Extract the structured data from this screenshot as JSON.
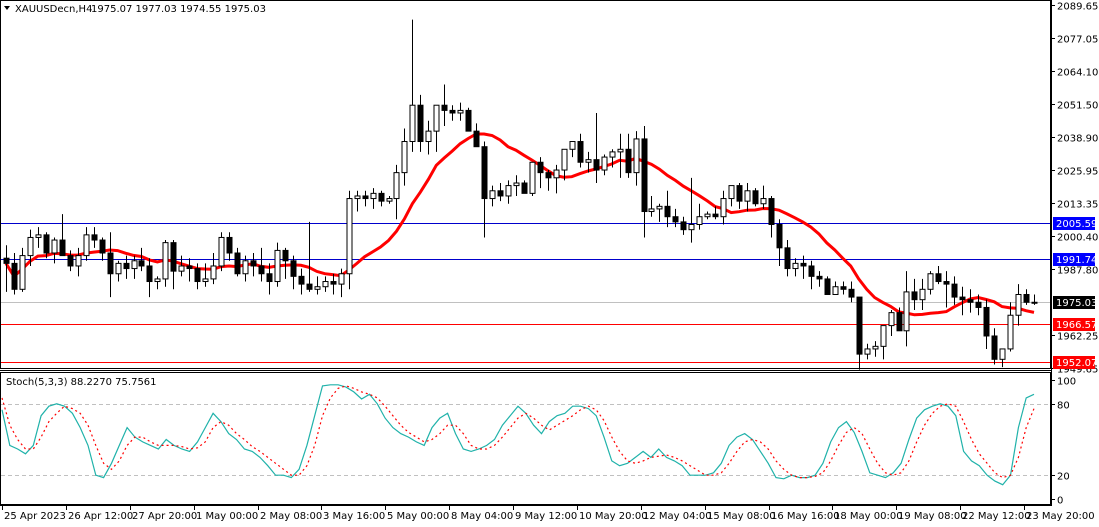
{
  "header": {
    "symbol_label": "XAUUSDecn,H4",
    "ohlc_label": "1975.07 1977.03 1974.55 1975.03"
  },
  "indicator": {
    "label": "Stoch(5,3,3) 88.2270 75.7561",
    "main_value": 88.227,
    "signal_value": 75.7561,
    "main_color": "#20b2aa",
    "signal_color": "#ff0000",
    "levels": [
      80,
      20
    ],
    "axis_ticks": [
      "100",
      "80",
      "20",
      "0"
    ]
  },
  "price_axis": {
    "ticks": [
      "2089.65",
      "2077.05",
      "2064.10",
      "2051.50",
      "2038.90",
      "2025.95",
      "2013.35",
      "2000.40",
      "1987.80",
      "1962.25",
      "1949.65"
    ],
    "tick_values": [
      2089.65,
      2077.05,
      2064.1,
      2051.5,
      2038.9,
      2025.95,
      2013.35,
      2000.4,
      1987.8,
      1962.25,
      1949.65
    ]
  },
  "price_tags": [
    {
      "label": "2005.59",
      "value": 2005.59,
      "bg": "#0000ff",
      "line": "#0000cc"
    },
    {
      "label": "1991.74",
      "value": 1991.74,
      "bg": "#0000ff",
      "line": "#0000cc"
    },
    {
      "label": "1975.03",
      "value": 1975.03,
      "bg": "#000000",
      "line": "#c0c0c0"
    },
    {
      "label": "1966.57",
      "value": 1966.57,
      "bg": "#ff0000",
      "line": "#ff0000"
    },
    {
      "label": "1952.07",
      "value": 1952.07,
      "bg": "#ff0000",
      "line": "#ff0000"
    }
  ],
  "time_axis": {
    "labels": [
      "25 Apr 2023",
      "26 Apr 12:00",
      "27 Apr 20:00",
      "1 May 00:00",
      "2 May 08:00",
      "3 May 16:00",
      "5 May 00:00",
      "8 May 04:00",
      "9 May 12:00",
      "10 May 20:00",
      "12 May 04:00",
      "15 May 08:00",
      "16 May 16:00",
      "18 May 00:00",
      "19 May 08:00",
      "22 May 12:00",
      "23 May 20:00"
    ]
  },
  "colors": {
    "ma_line": "#ff0000",
    "bull_body": "#ffffff",
    "bear_body": "#000000",
    "grid_level": "#c0c0c0"
  },
  "chart_data": [
    {
      "type": "candlestick",
      "title": "XAUUSDecn,H4",
      "ylim": [
        1949.65,
        2089.65
      ],
      "x_labels": [
        "25 Apr 2023",
        "26 Apr 12:00",
        "27 Apr 20:00",
        "1 May 00:00",
        "2 May 08:00",
        "3 May 16:00",
        "5 May 00:00",
        "8 May 04:00",
        "9 May 12:00",
        "10 May 20:00",
        "12 May 04:00",
        "15 May 08:00",
        "16 May 16:00",
        "18 May 00:00",
        "19 May 08:00",
        "22 May 12:00",
        "23 May 20:00"
      ],
      "ohlc": [
        [
          1992,
          1997,
          1979,
          1990
        ],
        [
          1990,
          1994,
          1978,
          1980
        ],
        [
          1980,
          1996,
          1979,
          1993
        ],
        [
          1993,
          2003,
          1989,
          2000
        ],
        [
          2000,
          2004,
          1996,
          2001
        ],
        [
          2001,
          2002,
          1992,
          1994
        ],
        [
          1994,
          2000,
          1990,
          1999
        ],
        [
          1999,
          2009,
          1993,
          1993
        ],
        [
          1993,
          1995,
          1987,
          1989
        ],
        [
          1989,
          1996,
          1985,
          1993
        ],
        [
          1993,
          2004,
          1991,
          2001
        ],
        [
          2001,
          2004,
          1996,
          1999
        ],
        [
          1999,
          2000,
          1991,
          1994
        ],
        [
          1994,
          2002,
          1977,
          1986
        ],
        [
          1986,
          1991,
          1983,
          1990
        ],
        [
          1990,
          1993,
          1984,
          1988
        ],
        [
          1988,
          1993,
          1984,
          1991
        ],
        [
          1991,
          1996,
          1987,
          1989
        ],
        [
          1989,
          1992,
          1977,
          1983
        ],
        [
          1983,
          1985,
          1980,
          1984
        ],
        [
          1984,
          1999,
          1981,
          1998
        ],
        [
          1998,
          1999,
          1980,
          1987
        ],
        [
          1987,
          1993,
          1985,
          1989
        ],
        [
          1989,
          1992,
          1983,
          1988
        ],
        [
          1988,
          1990,
          1980,
          1983
        ],
        [
          1983,
          1990,
          1981,
          1984
        ],
        [
          1984,
          1994,
          1982,
          1989
        ],
        [
          1989,
          2002,
          1987,
          2000
        ],
        [
          2000,
          2002,
          1991,
          1994
        ],
        [
          1994,
          1996,
          1985,
          1986
        ],
        [
          1986,
          1993,
          1983,
          1991
        ],
        [
          1991,
          1994,
          1985,
          1989
        ],
        [
          1989,
          1996,
          1983,
          1986
        ],
        [
          1986,
          1990,
          1978,
          1983
        ],
        [
          1983,
          1998,
          1981,
          1995
        ],
        [
          1995,
          1996,
          1984,
          1991
        ],
        [
          1991,
          1993,
          1980,
          1985
        ],
        [
          1985,
          1988,
          1978,
          1982
        ],
        [
          1982,
          2006,
          1979,
          1980
        ],
        [
          1980,
          1985,
          1978,
          1981
        ],
        [
          1981,
          1985,
          1979,
          1983
        ],
        [
          1983,
          1986,
          1978,
          1982
        ],
        [
          1982,
          1988,
          1977,
          1986
        ],
        [
          1986,
          2018,
          1980,
          2015
        ],
        [
          2015,
          2018,
          2010,
          2016
        ],
        [
          2016,
          2018,
          2012,
          2015
        ],
        [
          2015,
          2019,
          2011,
          2017
        ],
        [
          2017,
          2018,
          2012,
          2014
        ],
        [
          2014,
          2016,
          2013,
          2015
        ],
        [
          2015,
          2028,
          2007,
          2025
        ],
        [
          2025,
          2042,
          2020,
          2037
        ],
        [
          2037,
          2084,
          2033,
          2051
        ],
        [
          2051,
          2055,
          2033,
          2037
        ],
        [
          2037,
          2045,
          2032,
          2041
        ],
        [
          2041,
          2048,
          2033,
          2051
        ],
        [
          2051,
          2059,
          2043,
          2049
        ],
        [
          2049,
          2051,
          2045,
          2048
        ],
        [
          2048,
          2052,
          2045,
          2049
        ],
        [
          2049,
          2050,
          2042,
          2041
        ],
        [
          2041,
          2044,
          2037,
          2035
        ],
        [
          2035,
          2037,
          2000,
          2015
        ],
        [
          2015,
          2020,
          2012,
          2018
        ],
        [
          2018,
          2021,
          2014,
          2016
        ],
        [
          2016,
          2022,
          2013,
          2020
        ],
        [
          2020,
          2024,
          2016,
          2021
        ],
        [
          2021,
          2022,
          2018,
          2017
        ],
        [
          2017,
          2028,
          2016,
          2029
        ],
        [
          2029,
          2031,
          2019,
          2025
        ],
        [
          2025,
          2026,
          2018,
          2023
        ],
        [
          2023,
          2028,
          2017,
          2026
        ],
        [
          2026,
          2033,
          2022,
          2034
        ],
        [
          2034,
          2036,
          2031,
          2037
        ],
        [
          2037,
          2040,
          2027,
          2029
        ],
        [
          2029,
          2033,
          2025,
          2030
        ],
        [
          2030,
          2048,
          2021,
          2026
        ],
        [
          2026,
          2032,
          2024,
          2031
        ],
        [
          2031,
          2034,
          2027,
          2033
        ],
        [
          2033,
          2040,
          2023,
          2034
        ],
        [
          2034,
          2040,
          2023,
          2025
        ],
        [
          2025,
          2041,
          2020,
          2038
        ],
        [
          2038,
          2043,
          2000,
          2010
        ],
        [
          2010,
          2016,
          2008,
          2011
        ],
        [
          2011,
          2013,
          2006,
          2012
        ],
        [
          2012,
          2018,
          2004,
          2008
        ],
        [
          2008,
          2011,
          2004,
          2006
        ],
        [
          2006,
          2008,
          2001,
          2003
        ],
        [
          2003,
          2023,
          1998,
          2005
        ],
        [
          2005,
          2013,
          2003,
          2008
        ],
        [
          2008,
          2010,
          2007,
          2009
        ],
        [
          2009,
          2012,
          2007,
          2008
        ],
        [
          2008,
          2018,
          2005,
          2015
        ],
        [
          2015,
          2020,
          2012,
          2020
        ],
        [
          2020,
          2021,
          2011,
          2014
        ],
        [
          2014,
          2021,
          2010,
          2018
        ],
        [
          2018,
          2019,
          2012,
          2013
        ],
        [
          2013,
          2020,
          2011,
          2015
        ],
        [
          2015,
          2016,
          2000,
          2005
        ],
        [
          2005,
          2007,
          1989,
          1996
        ],
        [
          1996,
          1999,
          1985,
          1988
        ],
        [
          1988,
          1992,
          1985,
          1990
        ],
        [
          1990,
          1993,
          1984,
          1989
        ],
        [
          1989,
          1991,
          1980,
          1985
        ],
        [
          1985,
          1987,
          1981,
          1984
        ],
        [
          1984,
          1985,
          1978,
          1978
        ],
        [
          1978,
          1983,
          1978,
          1981
        ],
        [
          1981,
          1983,
          1978,
          1980
        ],
        [
          1980,
          1983,
          1975,
          1977
        ],
        [
          1977,
          1977,
          1949,
          1955
        ],
        [
          1955,
          1959,
          1953,
          1957
        ],
        [
          1957,
          1960,
          1954,
          1958
        ],
        [
          1958,
          1966,
          1953,
          1966
        ],
        [
          1966,
          1972,
          1962,
          1971
        ],
        [
          1971,
          1973,
          1964,
          1964
        ],
        [
          1964,
          1987,
          1958,
          1979
        ],
        [
          1979,
          1984,
          1972,
          1976
        ],
        [
          1976,
          1984,
          1972,
          1980
        ],
        [
          1980,
          1987,
          1978,
          1986
        ],
        [
          1986,
          1989,
          1982,
          1983
        ],
        [
          1983,
          1987,
          1973,
          1982
        ],
        [
          1982,
          1985,
          1974,
          1977
        ],
        [
          1977,
          1981,
          1970,
          1976
        ],
        [
          1976,
          1980,
          1971,
          1975
        ],
        [
          1975,
          1978,
          1970,
          1973
        ],
        [
          1973,
          1976,
          1957,
          1962
        ],
        [
          1962,
          1965,
          1951,
          1953
        ],
        [
          1953,
          1957,
          1950,
          1957
        ],
        [
          1957,
          1975,
          1956,
          1970
        ],
        [
          1970,
          1982,
          1966,
          1978
        ],
        [
          1978,
          1980,
          1974,
          1975
        ],
        [
          1975,
          1978,
          1974,
          1975
        ]
      ],
      "ma": {
        "name": "Moving Average (red)",
        "color": "#ff0000"
      },
      "horizontal_lines": [
        2005.59,
        1991.74,
        1975.03,
        1966.57,
        1952.07
      ]
    },
    {
      "type": "line",
      "title": "Stoch(5,3,3)",
      "ylim": [
        0,
        100
      ],
      "levels": [
        20,
        80
      ],
      "series": [
        {
          "name": "%K",
          "color": "#20b2aa",
          "values": [
            75,
            45,
            42,
            38,
            45,
            70,
            78,
            80,
            78,
            72,
            60,
            45,
            20,
            18,
            30,
            45,
            60,
            52,
            48,
            45,
            42,
            50,
            45,
            42,
            40,
            48,
            60,
            72,
            65,
            55,
            50,
            42,
            40,
            35,
            28,
            20,
            20,
            18,
            25,
            45,
            70,
            95,
            96,
            96,
            94,
            90,
            84,
            88,
            80,
            68,
            60,
            55,
            52,
            48,
            45,
            60,
            68,
            72,
            55,
            42,
            40,
            42,
            45,
            50,
            62,
            70,
            78,
            72,
            62,
            55,
            65,
            70,
            72,
            78,
            78,
            76,
            70,
            52,
            32,
            28,
            30,
            35,
            40,
            35,
            42,
            35,
            32,
            28,
            20,
            20,
            20,
            22,
            30,
            45,
            52,
            55,
            50,
            40,
            30,
            18,
            17,
            20,
            18,
            18,
            20,
            30,
            48,
            60,
            65,
            56,
            40,
            22,
            20,
            18,
            22,
            30,
            50,
            68,
            75,
            78,
            80,
            78,
            70,
            40,
            32,
            28,
            20,
            15,
            12,
            20,
            60,
            85,
            88
          ]
        },
        {
          "name": "%D",
          "color": "#ff0000",
          "dashed": true,
          "values": [
            85,
            62,
            50,
            42,
            42,
            52,
            65,
            72,
            78,
            76,
            72,
            62,
            45,
            30,
            25,
            32,
            45,
            52,
            52,
            48,
            45,
            45,
            45,
            44,
            42,
            43,
            48,
            60,
            65,
            62,
            55,
            50,
            44,
            40,
            35,
            30,
            25,
            20,
            20,
            28,
            45,
            70,
            85,
            93,
            95,
            93,
            90,
            88,
            85,
            78,
            70,
            62,
            56,
            52,
            48,
            50,
            55,
            62,
            62,
            55,
            45,
            42,
            42,
            45,
            52,
            60,
            68,
            72,
            68,
            62,
            58,
            62,
            66,
            70,
            75,
            78,
            75,
            66,
            52,
            40,
            32,
            30,
            32,
            35,
            36,
            37,
            35,
            32,
            28,
            24,
            20,
            20,
            22,
            30,
            40,
            48,
            50,
            48,
            42,
            32,
            25,
            20,
            18,
            18,
            19,
            22,
            32,
            45,
            56,
            60,
            55,
            42,
            30,
            22,
            20,
            22,
            32,
            48,
            62,
            72,
            78,
            80,
            78,
            65,
            50,
            38,
            30,
            22,
            18,
            20,
            35,
            60,
            76
          ]
        }
      ]
    }
  ]
}
